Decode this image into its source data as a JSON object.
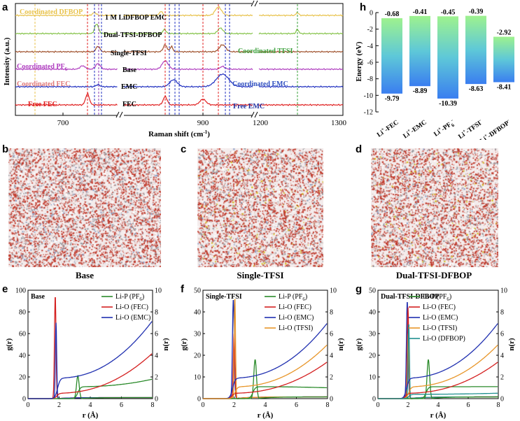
{
  "panel_labels": {
    "a": "a",
    "b": "b",
    "c": "c",
    "d": "d",
    "e": "e",
    "f": "f",
    "g": "g",
    "h": "h"
  },
  "panel_a": {
    "chart_data": {
      "type": "line",
      "xlabel": "Raman shift (cm",
      "xlabel_sup": "-1",
      "xlabel_end": ")",
      "ylabel": "Intensity (a.u.)",
      "x_ticks": [
        "700",
        "900",
        "1200",
        "1300"
      ],
      "series": [
        {
          "name": "1 M LiDFBOP EMC",
          "color": "#e8c24a"
        },
        {
          "name": "Dual-TFSI-DFBOP",
          "color": "#86c34a"
        },
        {
          "name": "Single-TFSI",
          "color": "#a0522d"
        },
        {
          "name": "Base",
          "color": "#b040c0"
        },
        {
          "name": "EMC",
          "color": "#2030c0"
        },
        {
          "name": "FEC",
          "color": "#e02020"
        }
      ],
      "annotations": {
        "coord_dfbop": "Coordinated DFBOP",
        "coord_pf": "Coordinated PF",
        "coord_pf_sub": "6",
        "coord_fec": "Coordinated FEC",
        "free_fec": "Free FEC",
        "coord_tfsi": "Coordinated TFSI",
        "coord_emc": "Coordinated EMC",
        "free_emc": "Free EMC"
      }
    }
  },
  "panel_h": {
    "chart_data": {
      "type": "bar",
      "ylabel": "Energy (eV)",
      "ylim": [
        -12,
        0
      ],
      "y_ticks": [
        "0",
        "-2",
        "-4",
        "-6",
        "-8",
        "-10",
        "-12"
      ],
      "categories": [
        "Li+-FEC",
        "Li+-EMC",
        "Li+-PF6-",
        "Li+-TFSI-",
        "Li+-DFBOP-"
      ],
      "tops": [
        -0.68,
        -0.41,
        -0.45,
        -0.39,
        -2.92
      ],
      "bottoms": [
        -9.79,
        -8.89,
        -10.39,
        -8.63,
        -8.41
      ],
      "top_labels": [
        "-0.68",
        "-0.41",
        "-0.45",
        "-0.39",
        "-2.92"
      ],
      "bottom_labels": [
        "-9.79",
        "-8.89",
        "-10.39",
        "-8.63",
        "-8.41"
      ]
    }
  },
  "snapshots": [
    {
      "caption": "Base"
    },
    {
      "caption": "Single-TFSI"
    },
    {
      "caption": "Dual-TFSI-DFBOP"
    }
  ],
  "rdf_panels": [
    {
      "title": "Base",
      "ylim_g": [
        0,
        100
      ],
      "g_ticks": [
        "0",
        "20",
        "40",
        "60",
        "80",
        "100"
      ],
      "ylim_n": [
        0,
        10
      ],
      "n_ticks": [
        "0",
        "2",
        "4",
        "6",
        "8",
        "10"
      ],
      "x_ticks": [
        "0",
        "2",
        "4",
        "6",
        "8"
      ],
      "xlabel": "r (Å)",
      "ylabel_left": "g(r)",
      "ylabel_right": "n(r)",
      "legend": [
        "Li-P (PF",
        "Li-O (FEC)",
        "Li-O (EMC)"
      ],
      "legend_colors": [
        "#2a8a2a",
        "#d42020",
        "#2030b0"
      ],
      "peaks": [
        {
          "r": 1.75,
          "g": 95,
          "w": 0.07,
          "color": "#d42020"
        },
        {
          "r": 1.8,
          "g": 70,
          "w": 0.06,
          "color": "#2030b0"
        },
        {
          "r": 3.2,
          "g": 21,
          "w": 0.12,
          "color": "#2a8a2a"
        }
      ],
      "n_final": [
        1.8,
        4.2,
        7.2
      ]
    },
    {
      "title": "Single-TFSI",
      "ylim_g": [
        0,
        50
      ],
      "g_ticks": [
        "0",
        "10",
        "20",
        "30",
        "40",
        "50"
      ],
      "ylim_n": [
        0,
        10
      ],
      "n_ticks": [
        "0",
        "2",
        "4",
        "6",
        "8",
        "10"
      ],
      "x_ticks": [
        "0",
        "2",
        "4",
        "6",
        "8"
      ],
      "xlabel": "r (Å)",
      "ylabel_left": "g(r)",
      "ylabel_right": "n(r)",
      "legend": [
        "Li-P (PF",
        "Li-O (FEC)",
        "Li-O (EMC)",
        "Li-O (TFSI)"
      ],
      "legend_colors": [
        "#2a8a2a",
        "#d42020",
        "#2030b0",
        "#e8962a"
      ],
      "peaks": [
        {
          "r": 1.95,
          "g": 46,
          "w": 0.08,
          "color": "#2030b0"
        },
        {
          "r": 2.0,
          "g": 30,
          "w": 0.07,
          "color": "#d42020"
        },
        {
          "r": 2.05,
          "g": 47,
          "w": 0.06,
          "color": "#e8962a"
        },
        {
          "r": 3.35,
          "g": 18,
          "w": 0.12,
          "color": "#2a8a2a"
        }
      ],
      "n_final": [
        1.0,
        3.4,
        7.0,
        5.0
      ]
    },
    {
      "title": "Dual-TFSI-DFBOP",
      "ylim_g": [
        0,
        50
      ],
      "g_ticks": [
        "0",
        "10",
        "20",
        "30",
        "40",
        "50"
      ],
      "ylim_n": [
        0,
        10
      ],
      "n_ticks": [
        "0",
        "2",
        "4",
        "6",
        "8",
        "10"
      ],
      "x_ticks": [
        "0",
        "2",
        "4",
        "6",
        "8"
      ],
      "xlabel": "r (Å)",
      "ylabel_left": "g(r)",
      "ylabel_right": "n(r)",
      "legend": [
        "Li-P (PF",
        "Li-O (FEC)",
        "Li-O (EMC)",
        "Li-O (TFSI)",
        "Li-O (DFBOP)"
      ],
      "legend_colors": [
        "#2a8a2a",
        "#d42020",
        "#2030b0",
        "#e8962a",
        "#209090"
      ],
      "peaks": [
        {
          "r": 1.95,
          "g": 45,
          "w": 0.08,
          "color": "#2030b0"
        },
        {
          "r": 2.0,
          "g": 42,
          "w": 0.07,
          "color": "#d42020"
        },
        {
          "r": 2.02,
          "g": 30,
          "w": 0.06,
          "color": "#e8962a"
        },
        {
          "r": 2.05,
          "g": 35,
          "w": 0.06,
          "color": "#209090"
        },
        {
          "r": 3.35,
          "g": 18,
          "w": 0.12,
          "color": "#2a8a2a"
        }
      ],
      "n_final": [
        1.1,
        3.4,
        7.0,
        5.0,
        0.5
      ]
    }
  ]
}
